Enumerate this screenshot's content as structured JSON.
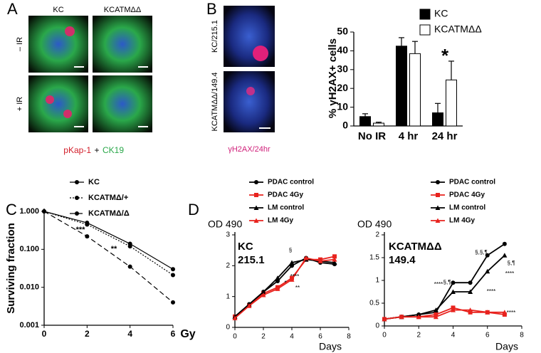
{
  "panel_letters": [
    "A",
    "B",
    "C",
    "D"
  ],
  "panel_a": {
    "columns": [
      "KC",
      "KCATMΔΔ"
    ],
    "rows": [
      "– IR",
      "+ IR"
    ],
    "caption": [
      "pKap-1",
      "+",
      "CK19"
    ]
  },
  "panel_b_images": {
    "rows": [
      "KC/215.1",
      "KCATMΔΔ/149.4"
    ],
    "caption": "γH2AX/24hr"
  },
  "chart_data": [
    {
      "type": "bar",
      "ylabel": "% γH2AX+ cells",
      "categories": [
        "No IR",
        "4 hr",
        "24 hr"
      ],
      "series": [
        {
          "name": "KC",
          "color": "#000000",
          "values": [
            5,
            42.5,
            7
          ],
          "errors": [
            1.5,
            4.5,
            5
          ]
        },
        {
          "name": "KCATMΔΔ",
          "color": "#ffffff",
          "values": [
            1.5,
            38.5,
            24.5
          ],
          "errors": [
            0.5,
            6.5,
            10
          ]
        }
      ],
      "ylim": [
        0,
        50
      ],
      "yticks": [
        0,
        10,
        20,
        30,
        40,
        50
      ],
      "annotations": [
        "*"
      ]
    },
    {
      "type": "line",
      "ylabel": "Surviving fraction",
      "xlabel": "Gy",
      "log_y": true,
      "x": [
        0,
        2,
        4,
        6
      ],
      "series": [
        {
          "name": "KC",
          "color": "#000000",
          "dash": "none",
          "values": [
            1,
            0.5,
            0.14,
            0.03
          ]
        },
        {
          "name": "KCATMΔ/+",
          "color": "#000000",
          "dash": "2,2",
          "values": [
            1,
            0.45,
            0.12,
            0.021
          ]
        },
        {
          "name": "KCATMΔ/Δ",
          "color": "#000000",
          "dash": "7,4",
          "values": [
            1,
            0.22,
            0.035,
            0.004
          ]
        }
      ],
      "xlim": [
        0,
        6
      ],
      "xticks": [
        0,
        2,
        4,
        6
      ],
      "ylim": [
        0.001,
        1
      ],
      "yticks": [
        {
          "value": 0.001,
          "label": "0.001"
        },
        {
          "value": 0.01,
          "label": "0.010"
        },
        {
          "value": 0.1,
          "label": "0.100"
        },
        {
          "value": 1,
          "label": "1.000"
        }
      ],
      "annotations": [
        "***",
        "**"
      ]
    },
    {
      "type": "line",
      "title": [
        "KC",
        "215.1"
      ],
      "ylabel": "OD 490",
      "xlabel": "Days",
      "x": [
        0,
        1,
        2,
        3,
        4,
        5,
        6,
        7
      ],
      "series": [
        {
          "name": "PDAC control",
          "color": "#000000",
          "marker": "circle",
          "values": [
            0.35,
            0.75,
            1.15,
            1.5,
            2.0,
            2.25,
            2.1,
            2.05
          ]
        },
        {
          "name": "PDAC 4Gy",
          "color": "#e8231e",
          "marker": "square",
          "values": [
            0.35,
            0.7,
            1.1,
            1.3,
            1.6,
            2.2,
            2.2,
            2.3
          ]
        },
        {
          "name": "LM control",
          "color": "#000000",
          "marker": "triangle",
          "values": [
            0.35,
            0.75,
            1.15,
            1.6,
            2.1,
            2.2,
            2.15,
            2.1
          ]
        },
        {
          "name": "LM 4Gy",
          "color": "#e8231e",
          "marker": "triangle",
          "values": [
            0.3,
            0.7,
            1.05,
            1.25,
            1.55,
            2.25,
            2.15,
            2.2
          ]
        }
      ],
      "xlim": [
        0,
        8
      ],
      "xticks": [
        0,
        2,
        4,
        6,
        8
      ],
      "ylim": [
        0,
        3
      ],
      "yticks": [
        0,
        1,
        2,
        3
      ],
      "annotations": [
        "§",
        "*",
        "**",
        "****"
      ]
    },
    {
      "type": "line",
      "title": [
        "KCATMΔΔ",
        "149.4"
      ],
      "ylabel": "OD 490",
      "xlabel": "Days",
      "x": [
        0,
        1,
        2,
        3,
        4,
        5,
        6,
        7
      ],
      "series": [
        {
          "name": "PDAC control",
          "color": "#000000",
          "marker": "circle",
          "values": [
            0.15,
            0.2,
            0.25,
            0.3,
            0.95,
            0.95,
            1.55,
            1.8
          ]
        },
        {
          "name": "PDAC 4Gy",
          "color": "#e8231e",
          "marker": "square",
          "values": [
            0.15,
            0.2,
            0.2,
            0.25,
            0.4,
            0.3,
            0.3,
            0.25
          ]
        },
        {
          "name": "LM control",
          "color": "#000000",
          "marker": "triangle",
          "values": [
            0.15,
            0.2,
            0.25,
            0.35,
            0.75,
            0.75,
            1.2,
            1.55
          ]
        },
        {
          "name": "LM 4Gy",
          "color": "#e8231e",
          "marker": "triangle",
          "values": [
            0.15,
            0.2,
            0.2,
            0.2,
            0.35,
            0.35,
            0.3,
            0.3
          ]
        }
      ],
      "xlim": [
        0,
        8
      ],
      "xticks": [
        0,
        2,
        4,
        6,
        8
      ],
      "ylim": [
        0,
        2
      ],
      "yticks": [
        0,
        0.5,
        1,
        1.5,
        2
      ],
      "annotations": [
        "§,¶",
        "§,§,¶",
        "§,¶",
        "****",
        "****",
        "****",
        "****"
      ]
    }
  ]
}
